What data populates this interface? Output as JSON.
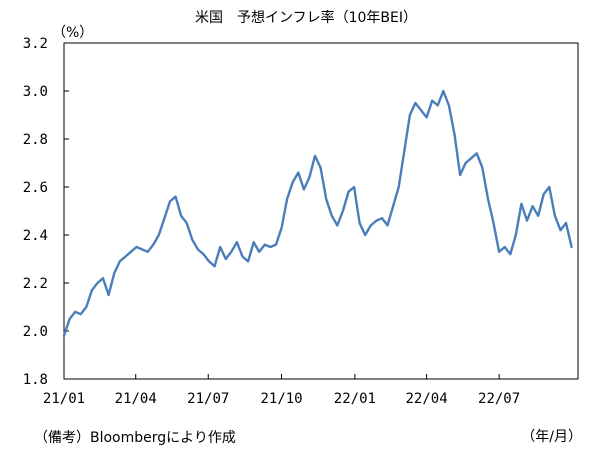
{
  "chart_data": {
    "type": "line",
    "title": "米国　予想インフレ率（10年BEI）",
    "y_unit_label": "（%）",
    "x_unit_label": "（年/月）",
    "source_note": "（備考）Bloombergにより作成",
    "ylim": [
      1.8,
      3.2
    ],
    "y_ticks": [
      "1.8",
      "2.0",
      "2.2",
      "2.4",
      "2.6",
      "2.8",
      "3.0",
      "3.2"
    ],
    "x_ticks": [
      "21/01",
      "21/04",
      "21/07",
      "21/10",
      "22/01",
      "22/04",
      "22/07"
    ],
    "grid": false,
    "legend": "none",
    "line_color": "#4a7ebb",
    "series": [
      {
        "x": [
          "21/01/01",
          "21/01/08",
          "21/01/15",
          "21/01/22",
          "21/01/29",
          "21/02/05",
          "21/02/12",
          "21/02/19",
          "21/02/26",
          "21/03/05",
          "21/03/12",
          "21/03/19",
          "21/03/26",
          "21/04/02",
          "21/04/09",
          "21/04/16",
          "21/04/23",
          "21/04/30",
          "21/05/07",
          "21/05/14",
          "21/05/21",
          "21/05/28",
          "21/06/04",
          "21/06/11",
          "21/06/18",
          "21/06/25",
          "21/07/02",
          "21/07/09",
          "21/07/16",
          "21/07/23",
          "21/07/30",
          "21/08/06",
          "21/08/13",
          "21/08/20",
          "21/08/27",
          "21/09/03",
          "21/09/10",
          "21/09/17",
          "21/09/24",
          "21/10/01",
          "21/10/08",
          "21/10/15",
          "21/10/22",
          "21/10/29",
          "21/11/05",
          "21/11/12",
          "21/11/19",
          "21/11/26",
          "21/12/03",
          "21/12/10",
          "21/12/17",
          "21/12/24",
          "21/12/31",
          "22/01/07",
          "22/01/14",
          "22/01/21",
          "22/01/28",
          "22/02/04",
          "22/02/11",
          "22/02/18",
          "22/02/25",
          "22/03/04",
          "22/03/11",
          "22/03/18",
          "22/03/25",
          "22/04/01",
          "22/04/08",
          "22/04/15",
          "22/04/22",
          "22/04/29",
          "22/05/06",
          "22/05/13",
          "22/05/20",
          "22/05/27",
          "22/06/03",
          "22/06/10",
          "22/06/17",
          "22/06/24",
          "22/07/01",
          "22/07/08",
          "22/07/15",
          "22/07/22",
          "22/07/29",
          "22/08/05",
          "22/08/12",
          "22/08/19",
          "22/08/26",
          "22/09/02",
          "22/09/09",
          "22/09/16",
          "22/09/23",
          "22/09/30"
        ],
        "values": [
          1.98,
          2.05,
          2.08,
          2.07,
          2.1,
          2.17,
          2.2,
          2.22,
          2.15,
          2.24,
          2.29,
          2.31,
          2.33,
          2.35,
          2.34,
          2.33,
          2.36,
          2.4,
          2.47,
          2.54,
          2.56,
          2.48,
          2.45,
          2.38,
          2.34,
          2.32,
          2.29,
          2.27,
          2.35,
          2.3,
          2.33,
          2.37,
          2.31,
          2.29,
          2.37,
          2.33,
          2.36,
          2.35,
          2.36,
          2.43,
          2.55,
          2.62,
          2.66,
          2.59,
          2.64,
          2.73,
          2.68,
          2.55,
          2.48,
          2.44,
          2.5,
          2.58,
          2.6,
          2.45,
          2.4,
          2.44,
          2.46,
          2.47,
          2.44,
          2.52,
          2.6,
          2.75,
          2.9,
          2.95,
          2.92,
          2.89,
          2.96,
          2.94,
          3.0,
          2.94,
          2.82,
          2.65,
          2.7,
          2.72,
          2.74,
          2.68,
          2.55,
          2.45,
          2.33,
          2.35,
          2.32,
          2.4,
          2.53,
          2.46,
          2.52,
          2.48,
          2.57,
          2.6,
          2.48,
          2.42,
          2.45,
          2.35
        ]
      }
    ]
  }
}
